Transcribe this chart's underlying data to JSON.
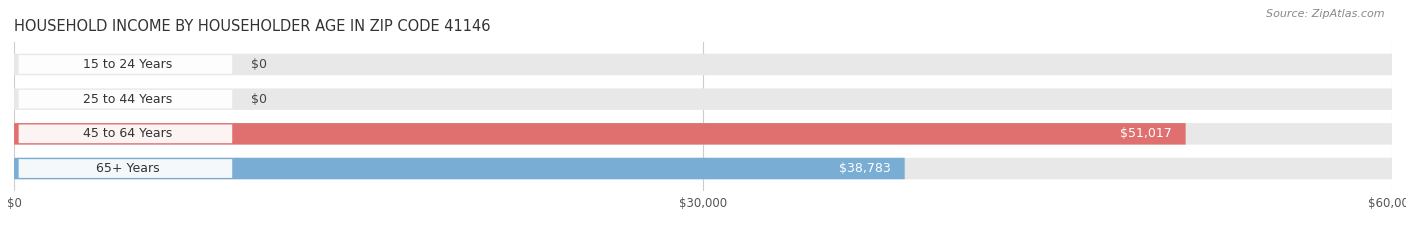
{
  "title": "HOUSEHOLD INCOME BY HOUSEHOLDER AGE IN ZIP CODE 41146",
  "source": "Source: ZipAtlas.com",
  "categories": [
    "15 to 24 Years",
    "25 to 44 Years",
    "45 to 64 Years",
    "65+ Years"
  ],
  "values": [
    0,
    0,
    51017,
    38783
  ],
  "bar_colors": [
    "#f4a0a8",
    "#f5c98a",
    "#e07070",
    "#7aadd4"
  ],
  "background_color": "#ffffff",
  "bar_bg_color": "#e8e8e8",
  "xlim": [
    0,
    60000
  ],
  "xticks": [
    0,
    30000,
    60000
  ],
  "xtick_labels": [
    "$0",
    "$30,000",
    "$60,000"
  ],
  "value_labels": [
    "$0",
    "$0",
    "$51,017",
    "$38,783"
  ],
  "title_fontsize": 10.5,
  "source_fontsize": 8,
  "bar_height": 0.62,
  "label_fontsize": 9,
  "tick_fontsize": 8.5
}
